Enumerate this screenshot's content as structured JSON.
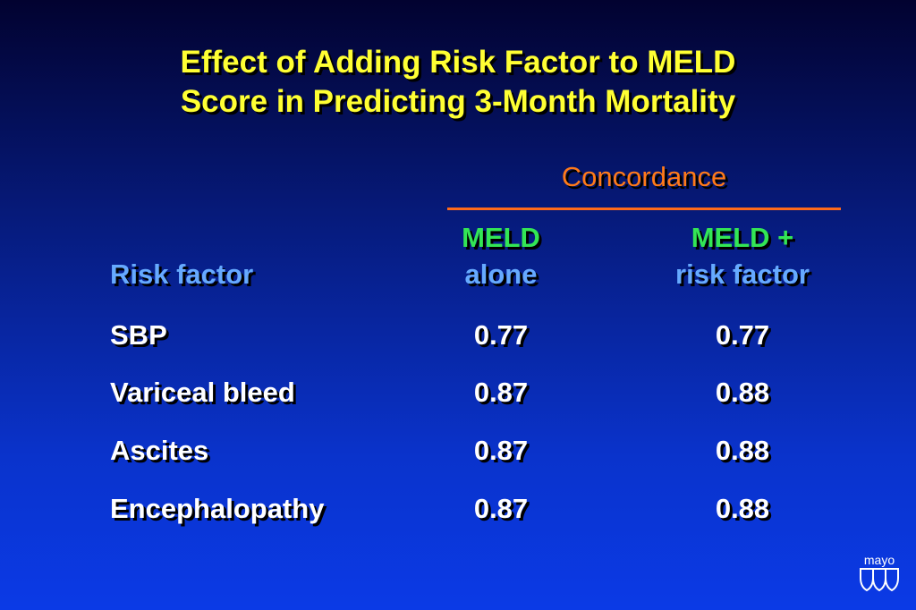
{
  "title": {
    "line1": "Effect of Adding Risk Factor to MELD",
    "line2": "Score in Predicting 3-Month Mortality"
  },
  "table": {
    "group_header": "Concordance",
    "risk_header": "Risk factor",
    "col1": {
      "line1": "MELD",
      "line2": "alone"
    },
    "col2": {
      "line1": "MELD +",
      "line2": "risk factor"
    },
    "rows": [
      {
        "label": "SBP",
        "meld_alone": "0.77",
        "meld_plus": "0.77"
      },
      {
        "label": "Variceal bleed",
        "meld_alone": "0.87",
        "meld_plus": "0.88"
      },
      {
        "label": "Ascites",
        "meld_alone": "0.87",
        "meld_plus": "0.88"
      },
      {
        "label": "Encephalopathy",
        "meld_alone": "0.87",
        "meld_plus": "0.88"
      }
    ]
  },
  "logo": {
    "text": "mayo",
    "icon": "triple-shield-icon"
  },
  "colors": {
    "title": "#ffff33",
    "group_header": "#ff7a1a",
    "col_head_line1": "#33e655",
    "col_head_line2": "#66aaff",
    "body_text": "#ffffff"
  }
}
